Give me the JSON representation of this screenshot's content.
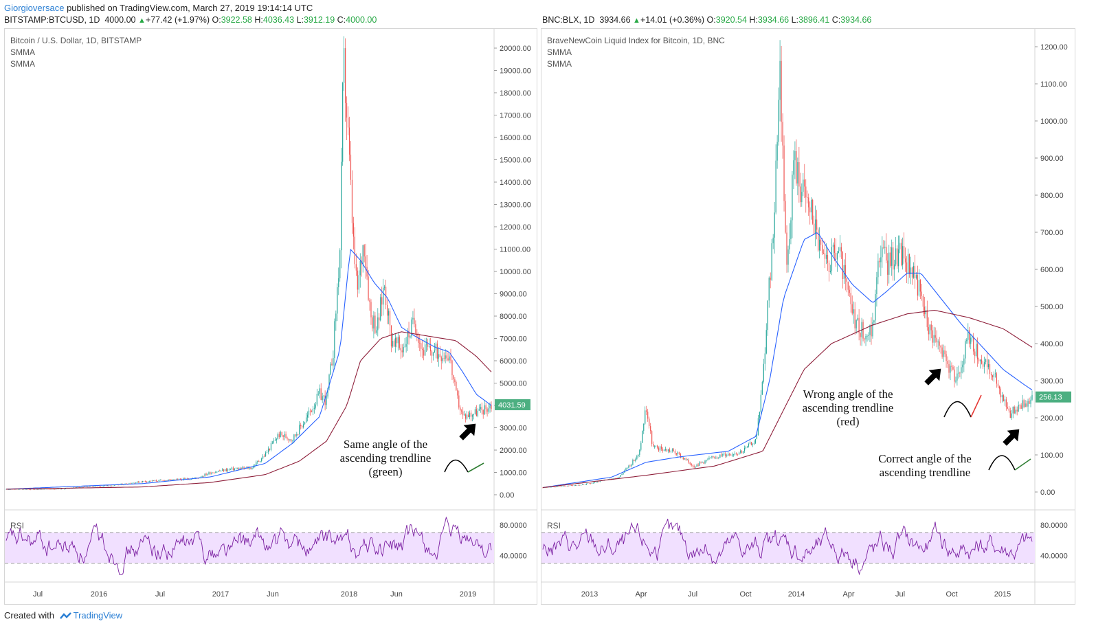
{
  "header": {
    "author": "Giorgioversace",
    "published": "published on TradingView.com, March 27, 2019 19:14:14 UTC"
  },
  "left": {
    "ohlc": {
      "symbol": "BITSTAMP:BTCUSD, 1D",
      "last": "4000.00",
      "change": "+77.42 (+1.97%)",
      "open_label": "O:",
      "open": "3922.58",
      "high_label": "H:",
      "high": "4036.43",
      "low_label": "L:",
      "low": "3912.19",
      "close_label": "C:",
      "close": "4000.00"
    },
    "title": "Bitcoin / U.S. Dollar, 1D, BITSTAMP",
    "indicators": [
      "SMMA",
      "SMMA"
    ],
    "rsi_label": "RSI"
  },
  "right": {
    "ohlc": {
      "symbol": "BNC:BLX, 1D",
      "last": "3934.66",
      "change": "+14.01 (+0.36%)",
      "open_label": "O:",
      "open": "3920.54",
      "high_label": "H:",
      "high": "3934.66",
      "low_label": "L:",
      "low": "3896.41",
      "close_label": "C:",
      "close": "3934.66"
    },
    "title": "BraveNewCoin Liquid Index for Bitcoin, 1D, BNC",
    "indicators": [
      "SMMA",
      "SMMA"
    ],
    "rsi_label": "RSI"
  },
  "footer": {
    "created": "Created with",
    "brand": "TradingView"
  },
  "colors": {
    "up": "#26a69a",
    "down": "#ef5350",
    "smma_fast": "#2962ff",
    "smma_slow": "#8e1f3a",
    "rsi": "#7b1fa2",
    "rsi_band": "#f1e0ff",
    "price_tag": "#4caf81",
    "green_arc": "#2e7d32",
    "red_arc": "#e53935"
  },
  "chart_data": [
    {
      "type": "line",
      "title": "Bitcoin / U.S. Dollar, 1D, BITSTAMP",
      "x_tick_labels": [
        "Jul",
        "2016",
        "Jul",
        "2017",
        "Jun",
        "2018",
        "Jun",
        "2019"
      ],
      "y_tick_labels": [
        "20000.00",
        "19000.00",
        "18000.00",
        "17000.00",
        "16000.00",
        "15000.00",
        "14000.00",
        "13000.00",
        "12000.00",
        "11000.00",
        "10000.00",
        "9000.00",
        "8000.00",
        "7000.00",
        "6000.00",
        "5000.00",
        "4000.00",
        "3000.00",
        "2000.00",
        "1000.00",
        "0.00"
      ],
      "ylim": [
        0,
        20000
      ],
      "last_price_label": "4031.59",
      "series": [
        {
          "name": "Price",
          "points": [
            [
              0,
              250
            ],
            [
              40,
              240
            ],
            [
              80,
              260
            ],
            [
              120,
              380
            ],
            [
              160,
              420
            ],
            [
              200,
              600
            ],
            [
              240,
              650
            ],
            [
              280,
              750
            ],
            [
              300,
              1000
            ],
            [
              330,
              1150
            ],
            [
              360,
              1200
            ],
            [
              380,
              1800
            ],
            [
              400,
              2700
            ],
            [
              420,
              2500
            ],
            [
              440,
              3400
            ],
            [
              460,
              4500
            ],
            [
              470,
              4200
            ],
            [
              480,
              6500
            ],
            [
              490,
              11000
            ],
            [
              495,
              19500
            ],
            [
              500,
              17000
            ],
            [
              510,
              11000
            ],
            [
              515,
              9000
            ],
            [
              525,
              11500
            ],
            [
              535,
              8000
            ],
            [
              545,
              7500
            ],
            [
              555,
              9500
            ],
            [
              565,
              7000
            ],
            [
              580,
              6500
            ],
            [
              600,
              7800
            ],
            [
              610,
              6500
            ],
            [
              630,
              6400
            ],
            [
              650,
              6300
            ],
            [
              660,
              4500
            ],
            [
              670,
              3500
            ],
            [
              680,
              3600
            ],
            [
              700,
              3800
            ],
            [
              712,
              4000
            ]
          ]
        },
        {
          "name": "SMMA",
          "points": [
            [
              0,
              250
            ],
            [
              200,
              500
            ],
            [
              300,
              800
            ],
            [
              380,
              1400
            ],
            [
              420,
              2300
            ],
            [
              460,
              3500
            ],
            [
              490,
              6500
            ],
            [
              505,
              11000
            ],
            [
              520,
              10500
            ],
            [
              540,
              9500
            ],
            [
              560,
              8800
            ],
            [
              580,
              7500
            ],
            [
              600,
              7100
            ],
            [
              630,
              6600
            ],
            [
              650,
              6400
            ],
            [
              670,
              5500
            ],
            [
              690,
              4500
            ],
            [
              712,
              4000
            ]
          ]
        },
        {
          "name": "SMMA",
          "points": [
            [
              0,
              250
            ],
            [
              200,
              350
            ],
            [
              300,
              550
            ],
            [
              380,
              900
            ],
            [
              430,
              1500
            ],
            [
              470,
              2400
            ],
            [
              500,
              4000
            ],
            [
              520,
              6000
            ],
            [
              550,
              7000
            ],
            [
              580,
              7300
            ],
            [
              620,
              7100
            ],
            [
              660,
              6900
            ],
            [
              690,
              6200
            ],
            [
              712,
              5500
            ]
          ]
        }
      ],
      "rsi": {
        "levels": [
          70,
          30
        ],
        "tick_labels": [
          "80.0000",
          "40.0000"
        ]
      }
    },
    {
      "type": "line",
      "title": "BraveNewCoin Liquid Index for Bitcoin, 1D, BNC",
      "x_tick_labels": [
        "2013",
        "Apr",
        "Jul",
        "Oct",
        "2014",
        "Apr",
        "Jul",
        "Oct",
        "2015"
      ],
      "y_tick_labels": [
        "1200.00",
        "1100.00",
        "1000.00",
        "900.00",
        "800.00",
        "700.00",
        "600.00",
        "500.00",
        "400.00",
        "300.00",
        "200.00",
        "100.00",
        "0.00"
      ],
      "ylim": [
        0,
        1200
      ],
      "last_price_label": "256.13",
      "series": [
        {
          "name": "Price",
          "points": [
            [
              0,
              12
            ],
            [
              60,
              20
            ],
            [
              110,
              40
            ],
            [
              140,
              100
            ],
            [
              150,
              230
            ],
            [
              160,
              120
            ],
            [
              190,
              110
            ],
            [
              220,
              70
            ],
            [
              250,
              95
            ],
            [
              290,
              110
            ],
            [
              310,
              140
            ],
            [
              320,
              300
            ],
            [
              335,
              700
            ],
            [
              345,
              1150
            ],
            [
              355,
              600
            ],
            [
              365,
              900
            ],
            [
              375,
              820
            ],
            [
              390,
              760
            ],
            [
              410,
              600
            ],
            [
              430,
              650
            ],
            [
              450,
              480
            ],
            [
              470,
              420
            ],
            [
              480,
              440
            ],
            [
              490,
              650
            ],
            [
              500,
              620
            ],
            [
              520,
              640
            ],
            [
              540,
              600
            ],
            [
              560,
              450
            ],
            [
              580,
              380
            ],
            [
              600,
              300
            ],
            [
              620,
              420
            ],
            [
              640,
              350
            ],
            [
              660,
              300
            ],
            [
              680,
              210
            ],
            [
              690,
              230
            ],
            [
              712,
              250
            ]
          ]
        },
        {
          "name": "SMMA",
          "points": [
            [
              0,
              12
            ],
            [
              100,
              40
            ],
            [
              150,
              80
            ],
            [
              200,
              95
            ],
            [
              270,
              110
            ],
            [
              310,
              150
            ],
            [
              330,
              300
            ],
            [
              350,
              520
            ],
            [
              380,
              680
            ],
            [
              400,
              700
            ],
            [
              420,
              640
            ],
            [
              450,
              560
            ],
            [
              480,
              510
            ],
            [
              500,
              540
            ],
            [
              530,
              590
            ],
            [
              550,
              590
            ],
            [
              580,
              520
            ],
            [
              610,
              450
            ],
            [
              640,
              390
            ],
            [
              670,
              330
            ],
            [
              700,
              290
            ],
            [
              712,
              275
            ]
          ]
        },
        {
          "name": "SMMA",
          "points": [
            [
              0,
              12
            ],
            [
              150,
              45
            ],
            [
              250,
              70
            ],
            [
              320,
              110
            ],
            [
              350,
              220
            ],
            [
              380,
              330
            ],
            [
              420,
              400
            ],
            [
              480,
              450
            ],
            [
              530,
              480
            ],
            [
              570,
              490
            ],
            [
              620,
              470
            ],
            [
              670,
              440
            ],
            [
              712,
              390
            ]
          ]
        }
      ],
      "rsi": {
        "levels": [
          70,
          30
        ],
        "tick_labels": [
          "80.0000",
          "40.0000"
        ]
      }
    }
  ],
  "annotations": {
    "left_line1": "Same angle of the",
    "left_line2": "ascending trendline",
    "left_line3": "(green)",
    "right_wrong_1": "Wrong angle of the",
    "right_wrong_2": "ascending trendline",
    "right_wrong_3": "(red)",
    "right_correct_1": "Correct angle of the",
    "right_correct_2": "ascending trendline"
  }
}
